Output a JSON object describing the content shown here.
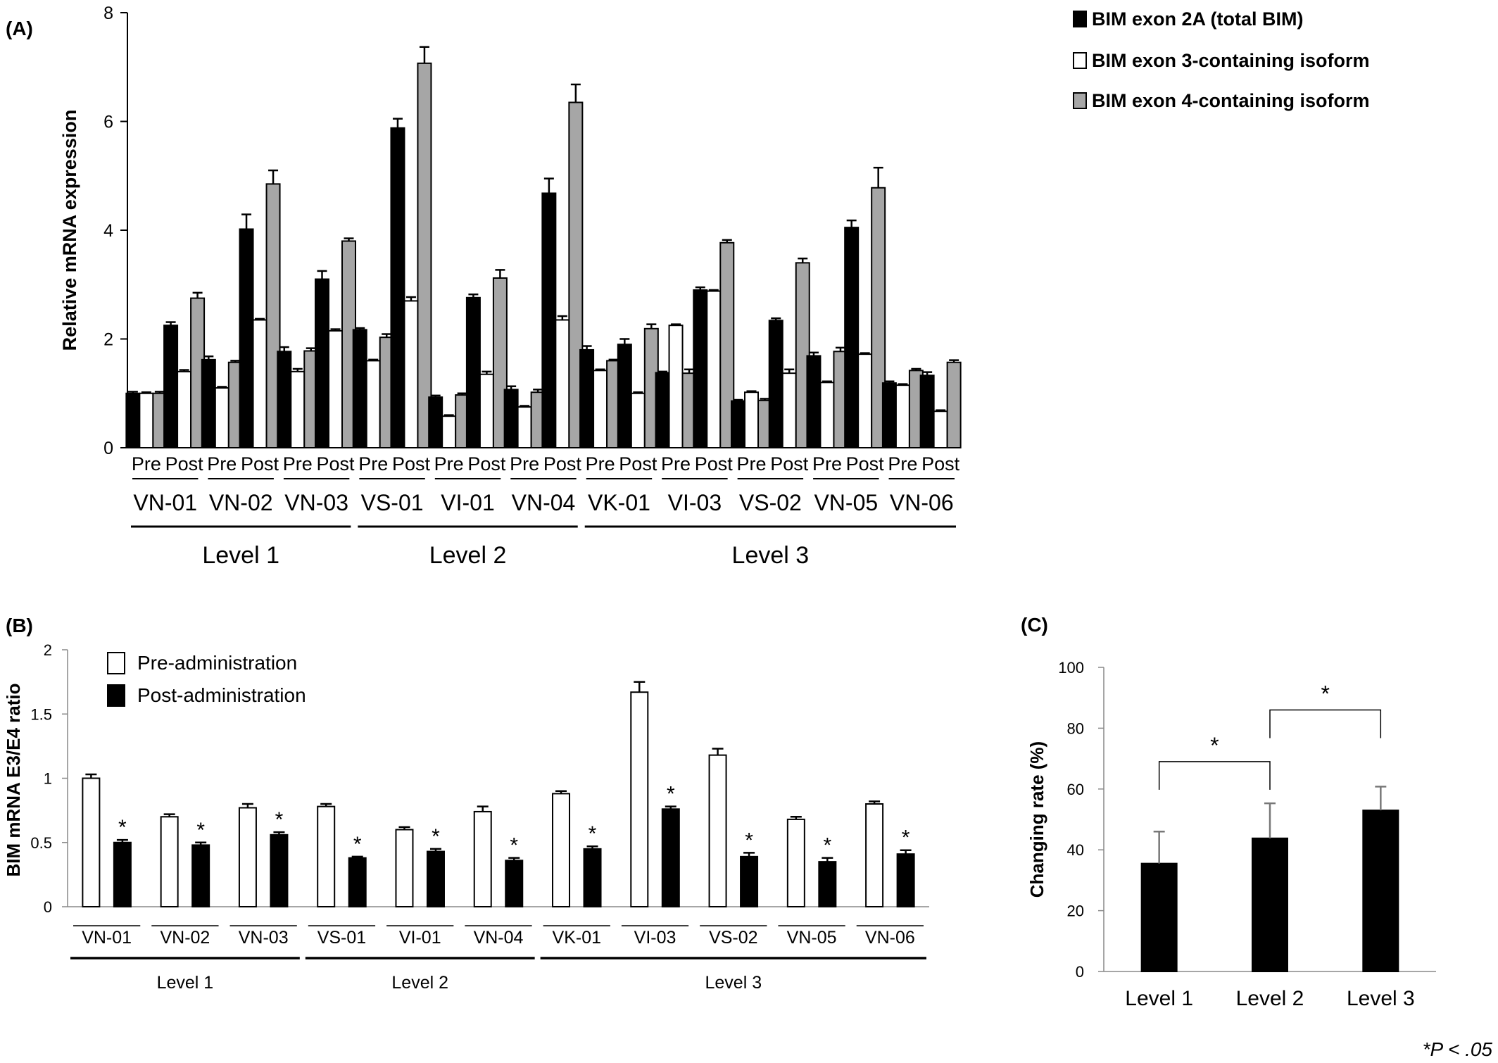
{
  "chart_data": [
    {
      "panel": "(A)",
      "type": "bar",
      "ylabel": "Relative  mRNA expression",
      "ylim": [
        0,
        8
      ],
      "yticks": [
        "0",
        "2",
        "4",
        "6",
        "8"
      ],
      "legend": {
        "placement": "top-right",
        "entries": [
          "BIM exon 2A (total BIM)",
          "BIM exon 3-containing isoform",
          "BIM exon 4-containing isoform"
        ]
      },
      "series_colors": [
        "#000000",
        "#ffffff",
        "#a6a6a6"
      ],
      "timepoints": [
        "Pre",
        "Post"
      ],
      "patients": [
        "VN-01",
        "VN-02",
        "VN-03",
        "VS-01",
        "VI-01",
        "VN-04",
        "VK-01",
        "VI-03",
        "VS-02",
        "VN-05",
        "VN-06"
      ],
      "levels": [
        {
          "label": "Level 1",
          "patients": [
            0,
            2
          ]
        },
        {
          "label": "Level 2",
          "patients": [
            3,
            5
          ]
        },
        {
          "label": "Level 3",
          "patients": [
            6,
            10
          ]
        }
      ],
      "values": [
        [
          [
            1.0,
            1.0,
            1.0
          ],
          [
            2.25,
            1.4,
            2.75
          ]
        ],
        [
          [
            1.62,
            1.1,
            1.57
          ],
          [
            4.02,
            2.35,
            4.85
          ]
        ],
        [
          [
            1.77,
            1.4,
            1.78
          ],
          [
            3.1,
            2.15,
            3.8
          ]
        ],
        [
          [
            2.17,
            1.6,
            2.03
          ],
          [
            5.88,
            2.7,
            7.07
          ]
        ],
        [
          [
            0.93,
            0.58,
            0.97
          ],
          [
            2.76,
            1.35,
            3.12
          ]
        ],
        [
          [
            1.07,
            0.75,
            1.02
          ],
          [
            4.68,
            2.35,
            6.35
          ]
        ],
        [
          [
            1.8,
            1.42,
            1.6
          ],
          [
            1.9,
            1.0,
            2.19
          ]
        ],
        [
          [
            1.38,
            2.25,
            1.37
          ],
          [
            2.9,
            2.88,
            3.77
          ]
        ],
        [
          [
            0.86,
            1.02,
            0.87
          ],
          [
            2.34,
            1.37,
            3.4
          ]
        ],
        [
          [
            1.69,
            1.2,
            1.77
          ],
          [
            4.05,
            1.72,
            4.78
          ]
        ],
        [
          [
            1.19,
            1.15,
            1.42
          ],
          [
            1.33,
            0.67,
            1.57
          ]
        ]
      ],
      "errors": [
        [
          [
            0.03,
            0.02,
            0.03
          ],
          [
            0.06,
            0.03,
            0.1
          ]
        ],
        [
          [
            0.06,
            0.02,
            0.03
          ],
          [
            0.27,
            0.02,
            0.25
          ]
        ],
        [
          [
            0.08,
            0.05,
            0.05
          ],
          [
            0.15,
            0.03,
            0.05
          ]
        ],
        [
          [
            0.03,
            0.02,
            0.06
          ],
          [
            0.17,
            0.07,
            0.3
          ]
        ],
        [
          [
            0.03,
            0.02,
            0.03
          ],
          [
            0.06,
            0.05,
            0.15
          ]
        ],
        [
          [
            0.06,
            0.02,
            0.05
          ],
          [
            0.27,
            0.07,
            0.33
          ]
        ],
        [
          [
            0.07,
            0.02,
            0.02
          ],
          [
            0.1,
            0.02,
            0.08
          ]
        ],
        [
          [
            0.02,
            0.02,
            0.07
          ],
          [
            0.05,
            0.02,
            0.05
          ]
        ],
        [
          [
            0.02,
            0.02,
            0.03
          ],
          [
            0.04,
            0.07,
            0.08
          ]
        ],
        [
          [
            0.06,
            0.02,
            0.07
          ],
          [
            0.13,
            0.02,
            0.37
          ]
        ],
        [
          [
            0.03,
            0.02,
            0.03
          ],
          [
            0.06,
            0.02,
            0.04
          ]
        ]
      ]
    },
    {
      "panel": "(B)",
      "type": "bar",
      "ylabel": "BIM mRNA E3/E4 ratio",
      "ylim": [
        0,
        2
      ],
      "yticks": [
        "0",
        "0.5",
        "1",
        "1.5",
        "2"
      ],
      "legend": {
        "placement": "top-left",
        "entries": [
          "Pre-administration",
          "Post-administration"
        ]
      },
      "series_colors": [
        "#ffffff",
        "#000000"
      ],
      "categories": [
        "VN-01",
        "VN-02",
        "VN-03",
        "VS-01",
        "VI-01",
        "VN-04",
        "VK-01",
        "VI-03",
        "VS-02",
        "VN-05",
        "VN-06"
      ],
      "series": [
        {
          "name": "Pre-administration",
          "values": [
            1.0,
            0.7,
            0.77,
            0.78,
            0.6,
            0.74,
            0.88,
            1.67,
            1.18,
            0.68,
            0.8
          ],
          "errors": [
            0.03,
            0.02,
            0.03,
            0.02,
            0.02,
            0.04,
            0.02,
            0.08,
            0.05,
            0.02,
            0.02
          ]
        },
        {
          "name": "Post-administration",
          "values": [
            0.5,
            0.48,
            0.56,
            0.38,
            0.43,
            0.36,
            0.45,
            0.76,
            0.39,
            0.35,
            0.41
          ],
          "errors": [
            0.02,
            0.02,
            0.02,
            0.01,
            0.02,
            0.02,
            0.02,
            0.02,
            0.03,
            0.03,
            0.03
          ]
        }
      ],
      "annotation": "*",
      "levels": [
        {
          "label": "Level 1",
          "categories": [
            0,
            2
          ]
        },
        {
          "label": "Level 2",
          "categories": [
            3,
            5
          ]
        },
        {
          "label": "Level 3",
          "categories": [
            6,
            10
          ]
        }
      ]
    },
    {
      "panel": "(C)",
      "type": "bar",
      "ylabel": "Changing rate (%)",
      "ylim": [
        0,
        100
      ],
      "yticks": [
        "0",
        "20",
        "40",
        "60",
        "80",
        "100"
      ],
      "categories": [
        "Level 1",
        "Level 2",
        "Level 3"
      ],
      "values": [
        35.5,
        43.8,
        53.0
      ],
      "errors": [
        10.5,
        11.5,
        7.8
      ],
      "significance": [
        {
          "between": [
            0,
            1
          ],
          "label": "*"
        },
        {
          "between": [
            1,
            2
          ],
          "label": "*"
        }
      ]
    }
  ],
  "footnote": "*P < .05"
}
